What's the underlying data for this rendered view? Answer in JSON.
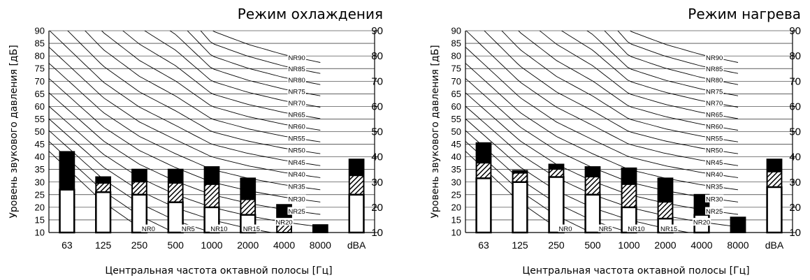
{
  "colors": {
    "loud": "#000000",
    "hatch": "#000000",
    "base": "#ffffff",
    "grid": "#000000"
  },
  "chart_data": [
    {
      "type": "bar",
      "title": "Режим охлаждения",
      "xlabel": "Центральная частота октавной полосы [Гц]",
      "ylabel": "Уровень звукового давления [дБ]",
      "ylim": [
        10,
        90
      ],
      "yticks": [
        "10",
        "15",
        "20",
        "25",
        "30",
        "35",
        "40",
        "45",
        "50",
        "55",
        "60",
        "65",
        "70",
        "75",
        "80",
        "85",
        "90"
      ],
      "yticks_right": [
        "10",
        "20",
        "30",
        "40",
        "50",
        "60",
        "70",
        "80",
        "90"
      ],
      "categories": [
        "63",
        "125",
        "250",
        "500",
        "1000",
        "2000",
        "4000",
        "8000",
        "dBA"
      ],
      "bars": [
        {
          "low": 27,
          "hatch_top": 27,
          "high": 42
        },
        {
          "low": 26,
          "hatch_top": 29.5,
          "high": 32
        },
        {
          "low": 25,
          "hatch_top": 30,
          "high": 35
        },
        {
          "low": 22,
          "hatch_top": 29.5,
          "high": 35
        },
        {
          "low": 20,
          "hatch_top": 29,
          "high": 36
        },
        {
          "low": 17,
          "hatch_top": 23,
          "high": 31.5
        },
        {
          "low": 10,
          "hatch_top": 14,
          "high": 21
        },
        {
          "low": 10,
          "hatch_top": 10,
          "high": 13
        },
        {
          "low": 25,
          "hatch_top": 32.5,
          "high": 39
        }
      ],
      "nr_curves": [
        "NR90",
        "NR85",
        "NR80",
        "NR75",
        "NR70",
        "NR65",
        "NR60",
        "NR55",
        "NR50",
        "NR45",
        "NR40",
        "NR35",
        "NR30",
        "NR25",
        "NR20",
        "NR15",
        "NR10",
        "NR5",
        "NR0"
      ],
      "grid": true
    },
    {
      "type": "bar",
      "title": "Режим нагрева",
      "xlabel": "Центральная частота октавной полосы [Гц]",
      "ylabel": "Уровень звукового давления [дБ]",
      "ylim": [
        10,
        90
      ],
      "yticks": [
        "10",
        "15",
        "20",
        "25",
        "30",
        "35",
        "40",
        "45",
        "50",
        "55",
        "60",
        "65",
        "70",
        "75",
        "80",
        "85",
        "90"
      ],
      "yticks_right": [
        "10",
        "20",
        "30",
        "40",
        "50",
        "60",
        "70",
        "80",
        "90"
      ],
      "categories": [
        "63",
        "125",
        "250",
        "500",
        "1000",
        "2000",
        "4000",
        "8000",
        "dBA"
      ],
      "bars": [
        {
          "low": 31.5,
          "hatch_top": 37.5,
          "high": 45.5
        },
        {
          "low": 30,
          "hatch_top": 33.5,
          "high": 34.5
        },
        {
          "low": 32,
          "hatch_top": 35,
          "high": 37
        },
        {
          "low": 25,
          "hatch_top": 32,
          "high": 36
        },
        {
          "low": 20,
          "hatch_top": 29,
          "high": 35.5
        },
        {
          "low": 15.5,
          "hatch_top": 22,
          "high": 31.5
        },
        {
          "low": 17,
          "hatch_top": 17,
          "high": 25
        },
        {
          "low": 10,
          "hatch_top": 10,
          "high": 16
        },
        {
          "low": 28,
          "hatch_top": 34,
          "high": 39
        }
      ],
      "nr_curves": [
        "NR90",
        "NR85",
        "NR80",
        "NR75",
        "NR70",
        "NR65",
        "NR60",
        "NR55",
        "NR50",
        "NR45",
        "NR40",
        "NR35",
        "NR30",
        "NR25",
        "NR20",
        "NR15",
        "NR10",
        "NR5",
        "NR0"
      ],
      "grid": true
    }
  ]
}
